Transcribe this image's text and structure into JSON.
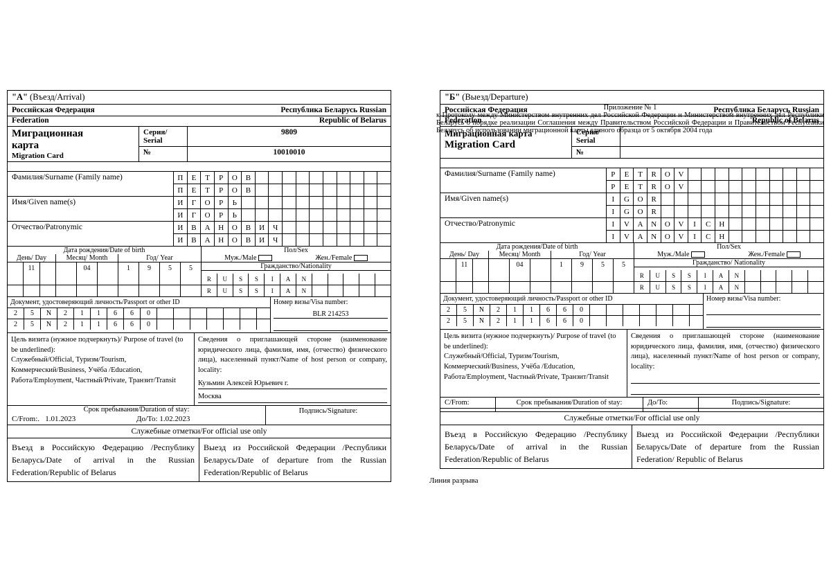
{
  "header": {
    "title": "Приложение № 1",
    "text": "к Протоколу между Министерством внутренних дел Российской Федерации и Министерством внутренних дел Республики Беларусь о порядке реализации Соглашения между Правительством Российской Федерации и Правительством Республики Беларусь об использовании миграционной карты единого образца от 5 октября 2004 года"
  },
  "cardA": {
    "section": "\"А\"",
    "section_sub": "(Въезд/Arrival)",
    "fed_left": "Российская Федерация",
    "fed_right": "Республика Беларусь Russian",
    "fed2_left": "Federation",
    "fed2_right": "Republic of Belarus",
    "mig_title1": "Миграционная",
    "mig_title2": "карта",
    "mig_sub": "Migration Card",
    "serial_lab": "Серия/ Serial",
    "serial_val": "9809",
    "num_lab": "№",
    "num_val": "10010010",
    "surname_lab": "Фамилия/Surname        (Family name)",
    "surname1": [
      "П",
      "Е",
      "Т",
      "Р",
      "О",
      "В",
      "",
      "",
      "",
      "",
      "",
      "",
      "",
      "",
      "",
      ""
    ],
    "surname2": [
      "П",
      "Е",
      "Т",
      "Р",
      "О",
      "В",
      "",
      "",
      "",
      "",
      "",
      "",
      "",
      "",
      "",
      ""
    ],
    "given_lab": "Имя/Given name(s)",
    "given1": [
      "И",
      "Г",
      "О",
      "Р",
      "Ь",
      "",
      "",
      "",
      "",
      "",
      "",
      "",
      "",
      "",
      "",
      ""
    ],
    "given2": [
      "И",
      "Г",
      "О",
      "Р",
      "Ь",
      "",
      "",
      "",
      "",
      "",
      "",
      "",
      "",
      "",
      "",
      ""
    ],
    "patr_lab": "Отчество/Patronymic",
    "patr1": [
      "И",
      "В",
      "А",
      "Н",
      "О",
      "В",
      "И",
      "Ч",
      "",
      "",
      "",
      "",
      "",
      "",
      "",
      ""
    ],
    "patr2": [
      "И",
      "В",
      "А",
      "Н",
      "О",
      "В",
      "И",
      "Ч",
      "",
      "",
      "",
      "",
      "",
      "",
      "",
      ""
    ],
    "dob_title": "Дата рождения/Date of birth",
    "sex_title": "Пол/Sex",
    "day_lab": "День/ Day",
    "month_lab": "Месяц/ Month",
    "year_lab": "Год/ Year",
    "male_lab": "Муж./Male",
    "female_lab": "Жен./Female",
    "nat_lab": "Гражданство/Nationality",
    "day": [
      "",
      "11",
      ""
    ],
    "month": [
      "",
      "04",
      ""
    ],
    "year": [
      "1",
      "9",
      "5",
      "5"
    ],
    "nat1": [
      "R",
      "U",
      "S",
      "S",
      "I",
      "A",
      "N",
      "",
      "",
      "",
      "",
      ""
    ],
    "nat2": [
      "R",
      "U",
      "S",
      "S",
      "I",
      "A",
      "N",
      "",
      "",
      "",
      "",
      ""
    ],
    "doc_lab": "Документ, удостоверяющий личность/Passport or other ID",
    "doc1": [
      "2",
      "5",
      "N",
      "2",
      "1",
      "1",
      "6",
      "6",
      "0",
      "",
      "",
      "",
      "",
      "",
      ""
    ],
    "doc2": [
      "2",
      "5",
      "N",
      "2",
      "1",
      "1",
      "6",
      "6",
      "0",
      "",
      "",
      "",
      "",
      "",
      ""
    ],
    "visa_lab": "Номер визы/Visa number:",
    "visa_val": "BLR 214253",
    "purpose_title": "Цель визита (нужное подчеркнуть)/ Purpose of travel (to be underlined):",
    "purpose_list": "Служебный/Official, Туризм/Tourism, Коммерческий/Business, Учёба /Education, Работа/Employment, Частный/Private, Транзит/Transit",
    "host_title": "Сведения о приглашающей стороне (наименование юридического лица, фамилия, имя, (отчество) физического лица), населенный пункт/Name of host person or company, locality:",
    "host_val1": "Кузьмин        Алексей        Юрьевич        г.",
    "host_val2": "Москва",
    "stay_title": "Срок пребывания/Duration of stay:",
    "stay_from_lab": "С/From:.",
    "stay_from": "1.01.2023",
    "stay_to_lab": "До/To:",
    "stay_to": "1.02.2023",
    "sign_lab": "Подпись/Signature:",
    "official": "Служебные отметки/For official use only",
    "entry": "Въезд в Российскую Федерацию /Республику Беларусь/Date of arrival in the Russian Federation/Republic of Belarus",
    "exit": "Выезд из Российской Федерации /Республики Беларусь/Date of departure from the Russian Federation/Republic of Belarus"
  },
  "cardB": {
    "section": "\"Б\"",
    "section_sub": "(Выезд/Departure)",
    "fed_left": "Российская Федерация",
    "fed_right": "Республика Беларусь Russian",
    "fed2_left": "Federation",
    "fed2_right": "Republic of Belarus",
    "mig_title1": "Миграционная карта",
    "mig_sub": "Migration Card",
    "serial_lab": "Серия/ Serial",
    "serial_val": "",
    "num_lab": "№",
    "num_val": "",
    "surname_lab": "Фамилия/Surname  (Family name)",
    "surname1": [
      "P",
      "E",
      "T",
      "R",
      "O",
      "V",
      "",
      "",
      "",
      "",
      "",
      "",
      "",
      "",
      "",
      ""
    ],
    "surname2": [
      "P",
      "E",
      "T",
      "R",
      "O",
      "V",
      "",
      "",
      "",
      "",
      "",
      "",
      "",
      "",
      "",
      ""
    ],
    "given_lab": "Имя/Given name(s)",
    "given1": [
      "I",
      "G",
      "O",
      "R",
      "",
      "",
      "",
      "",
      "",
      "",
      "",
      "",
      "",
      "",
      "",
      ""
    ],
    "given2": [
      "I",
      "G",
      "O",
      "R",
      "",
      "",
      "",
      "",
      "",
      "",
      "",
      "",
      "",
      "",
      "",
      ""
    ],
    "patr_lab": "Отчество/Patronymic",
    "patr1": [
      "I",
      "V",
      "A",
      "N",
      "O",
      "V",
      "I",
      "C",
      "H",
      "",
      "",
      "",
      "",
      "",
      "",
      ""
    ],
    "patr2": [
      "I",
      "V",
      "A",
      "N",
      "O",
      "V",
      "I",
      "C",
      "H",
      "",
      "",
      "",
      "",
      "",
      "",
      ""
    ],
    "dob_title": "Дата рождения/Date of birth",
    "sex_title": "Пол/Sex",
    "day_lab": "День/ Day",
    "month_lab": "Месяц/ Month",
    "year_lab": "Год/ Year",
    "male_lab": "Муж./Male",
    "female_lab": "Жен./Female",
    "nat_lab": "Гражданство/ Nationality",
    "day": [
      "",
      "11",
      ""
    ],
    "month": [
      "",
      "04",
      ""
    ],
    "year": [
      "1",
      "9",
      "5",
      "5"
    ],
    "nat1": [
      "R",
      "U",
      "S",
      "S",
      "I",
      "A",
      "N",
      "",
      "",
      "",
      "",
      ""
    ],
    "nat2": [
      "R",
      "U",
      "S",
      "S",
      "I",
      "A",
      "N",
      "",
      "",
      "",
      "",
      ""
    ],
    "doc_lab": "Документ, удостоверяющий личность/Passport or other ID",
    "doc1": [
      "2",
      "5",
      "N",
      "2",
      "1",
      "1",
      "6",
      "6",
      "0",
      "",
      "",
      "",
      "",
      "",
      ""
    ],
    "doc2": [
      "2",
      "5",
      "N",
      "2",
      "1",
      "1",
      "6",
      "6",
      "0",
      "",
      "",
      "",
      "",
      "",
      ""
    ],
    "visa_lab": "Номер визы/Visa number:",
    "visa_val": "",
    "purpose_title": "Цель визита (нужное подчеркнуть)/ Purpose of travel (to be underlined):",
    "purpose_list": "Служебный/Official, Туризм/Tourism, Коммерческий/Business, Учёба /Education, Работа/Employment, Частный/Private, Транзит/Transit",
    "host_title": "Сведения о приглашающей стороне (наименование юридического лица, фамилия, имя, (отчество) физического лица), населенный пункт/Name of host person or company, locality:",
    "stay_title": "Срок пребывания/Duration of stay:",
    "stay_from_lab": "С/From:",
    "stay_to_lab": "До/To:",
    "sign_lab": "Подпись/Signature:",
    "official": "Служебные отметки/For official use only",
    "entry": "Въезд в Российскую Федерацию /Республику Беларусь/Date of arrival in the Russian Federation/Republic of Belarus",
    "exit": "Выезд из Российской Федерации /Республики Беларусь/Date of departure from the Russian Federation/ Republic of Belarus"
  },
  "tear": "Линия разрыва"
}
